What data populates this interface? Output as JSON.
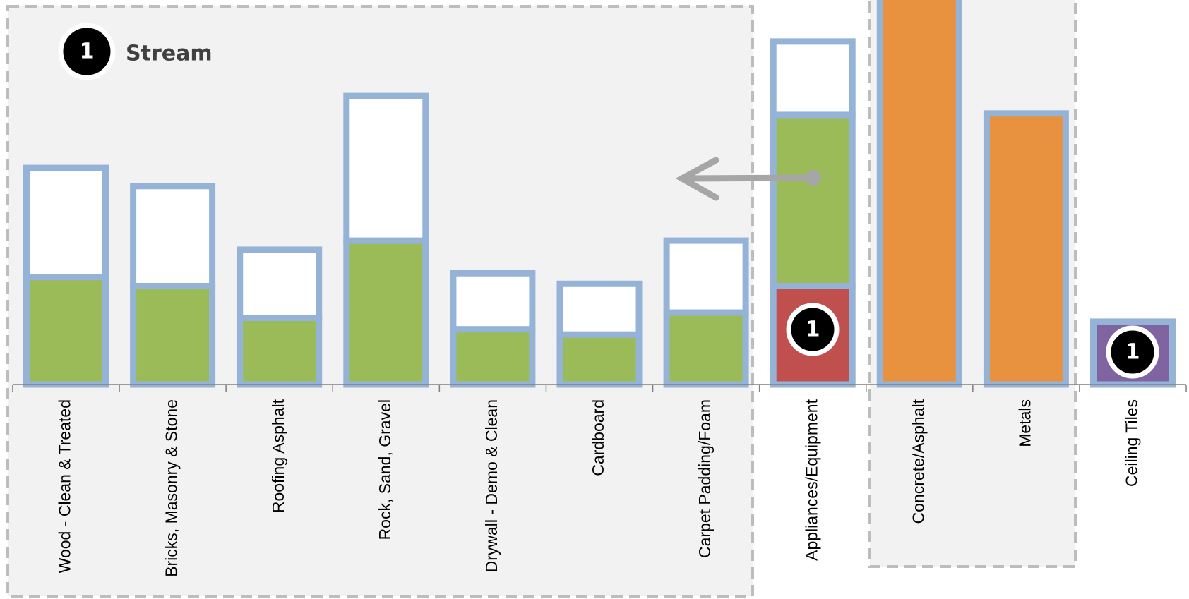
{
  "chart_data": {
    "type": "bar",
    "stacked": true,
    "categories": [
      "Wood - Clean & Treated",
      "Bricks, Masonry & Stone",
      "Roofing Asphalt",
      "Rock, Sand, Gravel",
      "Drywall - Demo & Clean",
      "Cardboard",
      "Carpet Padding/Foam",
      "Appliances/Equipment",
      "Concrete/Asphalt",
      "Metals",
      "Ceiling Tiles"
    ],
    "series": [
      {
        "color": "#c0504d",
        "values": [
          null,
          null,
          null,
          null,
          null,
          null,
          null,
          26,
          null,
          null,
          null
        ]
      },
      {
        "color": "#9bbb59",
        "values": [
          28.4,
          26,
          17.6,
          38,
          14.6,
          13.2,
          19,
          45.2,
          null,
          null,
          null
        ]
      },
      {
        "color": "#ffffff",
        "values": [
          28.8,
          26.4,
          18,
          38.2,
          14.8,
          13.4,
          19,
          19.4,
          null,
          null,
          null
        ]
      },
      {
        "color": "#e8913f",
        "values": [
          null,
          null,
          null,
          null,
          null,
          null,
          null,
          null,
          105,
          71.6,
          null
        ]
      },
      {
        "color": "#8064a2",
        "values": [
          null,
          null,
          null,
          null,
          null,
          null,
          null,
          null,
          null,
          null,
          16.6
        ]
      }
    ],
    "outline_color": "#95b3d7",
    "ylim": [
      0,
      100
    ],
    "annotations": {
      "badge": "1",
      "stream_label": "Stream"
    }
  }
}
